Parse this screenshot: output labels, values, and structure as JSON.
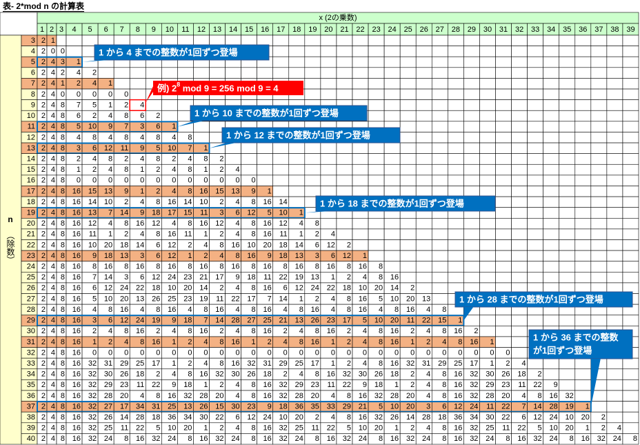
{
  "title": "表- 2*mod n の計算表",
  "x_header": "x (2の乗数)",
  "n_header": "n",
  "n_subheader": "（除数）",
  "columns": [
    1,
    2,
    3,
    4,
    5,
    6,
    7,
    8,
    9,
    10,
    11,
    12,
    13,
    14,
    15,
    16,
    17,
    18,
    19,
    20,
    21,
    22,
    23,
    24,
    25,
    26,
    27,
    28,
    29,
    30,
    31,
    32,
    33,
    34,
    35,
    36,
    37,
    38,
    39
  ],
  "rows": [
    {
      "n": 3,
      "highlight": true,
      "values": [
        2,
        1
      ]
    },
    {
      "n": 4,
      "values": [
        2,
        0,
        0
      ]
    },
    {
      "n": 5,
      "highlight": true,
      "outline": true,
      "values": [
        2,
        4,
        3,
        1
      ]
    },
    {
      "n": 6,
      "values": [
        2,
        4,
        2,
        4,
        2
      ]
    },
    {
      "n": 7,
      "highlight": true,
      "values": [
        2,
        4,
        1,
        2,
        4,
        1
      ]
    },
    {
      "n": 8,
      "values": [
        2,
        4,
        0,
        0,
        0,
        0,
        0
      ]
    },
    {
      "n": 9,
      "values": [
        2,
        4,
        8,
        7,
        5,
        1,
        2,
        4
      ]
    },
    {
      "n": 10,
      "values": [
        2,
        4,
        8,
        6,
        2,
        4,
        8,
        6,
        2
      ]
    },
    {
      "n": 11,
      "highlight": true,
      "outline": true,
      "values": [
        2,
        4,
        8,
        5,
        10,
        9,
        7,
        3,
        6,
        1
      ]
    },
    {
      "n": 12,
      "values": [
        2,
        4,
        8,
        4,
        8,
        4,
        8,
        4,
        8,
        4,
        8
      ]
    },
    {
      "n": 13,
      "highlight": true,
      "outline": true,
      "values": [
        2,
        4,
        8,
        3,
        6,
        12,
        11,
        9,
        5,
        10,
        7,
        1
      ]
    },
    {
      "n": 14,
      "values": [
        2,
        4,
        8,
        2,
        4,
        8,
        2,
        4,
        8,
        2,
        4,
        8,
        2
      ]
    },
    {
      "n": 15,
      "values": [
        2,
        4,
        8,
        1,
        2,
        4,
        8,
        1,
        2,
        4,
        8,
        1,
        2,
        4
      ]
    },
    {
      "n": 16,
      "values": [
        2,
        4,
        8,
        0,
        0,
        0,
        0,
        0,
        0,
        0,
        0,
        0,
        0,
        0,
        0
      ]
    },
    {
      "n": 17,
      "highlight": true,
      "values": [
        2,
        4,
        8,
        16,
        15,
        13,
        9,
        1,
        2,
        4,
        8,
        16,
        15,
        13,
        9,
        1
      ]
    },
    {
      "n": 18,
      "values": [
        2,
        4,
        8,
        16,
        14,
        10,
        2,
        4,
        8,
        16,
        14,
        10,
        2,
        4,
        8,
        16,
        14
      ]
    },
    {
      "n": 19,
      "highlight": true,
      "outline": true,
      "values": [
        2,
        4,
        8,
        16,
        13,
        7,
        14,
        9,
        18,
        17,
        15,
        11,
        3,
        6,
        12,
        5,
        10,
        1
      ]
    },
    {
      "n": 20,
      "values": [
        2,
        4,
        8,
        16,
        12,
        4,
        8,
        16,
        12,
        4,
        8,
        16,
        12,
        4,
        8,
        16,
        12,
        4,
        8
      ]
    },
    {
      "n": 21,
      "values": [
        2,
        4,
        8,
        16,
        11,
        1,
        2,
        4,
        8,
        16,
        11,
        1,
        2,
        4,
        8,
        16,
        11,
        1,
        2,
        4
      ]
    },
    {
      "n": 22,
      "values": [
        2,
        4,
        8,
        16,
        10,
        20,
        18,
        14,
        6,
        12,
        2,
        4,
        8,
        16,
        10,
        20,
        18,
        14,
        6,
        12,
        2
      ]
    },
    {
      "n": 23,
      "highlight": true,
      "values": [
        2,
        4,
        8,
        16,
        9,
        18,
        13,
        3,
        6,
        12,
        1,
        2,
        4,
        8,
        16,
        9,
        18,
        13,
        3,
        6,
        12,
        1
      ]
    },
    {
      "n": 24,
      "values": [
        2,
        4,
        8,
        16,
        8,
        16,
        8,
        16,
        8,
        16,
        8,
        16,
        8,
        16,
        8,
        16,
        8,
        16,
        8,
        16,
        8,
        16,
        8
      ]
    },
    {
      "n": 25,
      "values": [
        2,
        4,
        8,
        16,
        7,
        14,
        3,
        6,
        12,
        24,
        23,
        21,
        17,
        9,
        18,
        11,
        22,
        19,
        13,
        1,
        2,
        4,
        8,
        16
      ]
    },
    {
      "n": 26,
      "values": [
        2,
        4,
        8,
        16,
        6,
        12,
        24,
        22,
        18,
        10,
        20,
        14,
        2,
        4,
        8,
        16,
        6,
        12,
        24,
        22,
        18,
        10,
        20,
        14,
        2
      ]
    },
    {
      "n": 27,
      "values": [
        2,
        4,
        8,
        16,
        5,
        10,
        20,
        13,
        26,
        25,
        23,
        19,
        11,
        22,
        17,
        7,
        14,
        1,
        2,
        4,
        8,
        16,
        5,
        10,
        20,
        13
      ]
    },
    {
      "n": 28,
      "values": [
        2,
        4,
        8,
        16,
        4,
        8,
        16,
        4,
        8,
        16,
        4,
        8,
        16,
        4,
        8,
        16,
        4,
        8,
        16,
        4,
        8,
        16,
        4,
        8,
        16,
        4,
        8
      ]
    },
    {
      "n": 29,
      "highlight": true,
      "outline": true,
      "values": [
        2,
        4,
        8,
        16,
        3,
        6,
        12,
        24,
        19,
        9,
        18,
        7,
        14,
        28,
        27,
        25,
        21,
        13,
        26,
        23,
        17,
        5,
        10,
        20,
        11,
        22,
        15,
        1
      ]
    },
    {
      "n": 30,
      "values": [
        2,
        4,
        8,
        16,
        2,
        4,
        8,
        16,
        2,
        4,
        8,
        16,
        2,
        4,
        8,
        16,
        2,
        4,
        8,
        16,
        2,
        4,
        8,
        16,
        2,
        4,
        8,
        16,
        2
      ]
    },
    {
      "n": 31,
      "highlight": true,
      "values": [
        2,
        4,
        8,
        16,
        1,
        2,
        4,
        8,
        16,
        1,
        2,
        4,
        8,
        16,
        1,
        2,
        4,
        8,
        16,
        1,
        2,
        4,
        8,
        16,
        1,
        2,
        4,
        8,
        16,
        1
      ]
    },
    {
      "n": 32,
      "values": [
        2,
        4,
        8,
        16,
        0,
        0,
        0,
        0,
        0,
        0,
        0,
        0,
        0,
        0,
        0,
        0,
        0,
        0,
        0,
        0,
        0,
        0,
        0,
        0,
        0,
        0,
        0,
        0,
        0,
        0,
        0
      ]
    },
    {
      "n": 33,
      "values": [
        2,
        4,
        8,
        16,
        32,
        31,
        29,
        25,
        17,
        1,
        2,
        4,
        8,
        16,
        32,
        31,
        29,
        25,
        17,
        1,
        2,
        4,
        8,
        16,
        32,
        31,
        29,
        25,
        17,
        1,
        2,
        4
      ]
    },
    {
      "n": 34,
      "values": [
        2,
        4,
        8,
        16,
        32,
        30,
        26,
        18,
        2,
        4,
        8,
        16,
        32,
        30,
        26,
        18,
        2,
        4,
        8,
        16,
        32,
        30,
        26,
        18,
        2,
        4,
        8,
        16,
        32,
        30,
        26,
        18,
        2
      ]
    },
    {
      "n": 35,
      "values": [
        2,
        4,
        8,
        16,
        32,
        29,
        23,
        11,
        22,
        9,
        18,
        1,
        2,
        4,
        8,
        16,
        32,
        29,
        23,
        11,
        22,
        9,
        18,
        1,
        2,
        4,
        8,
        16,
        32,
        29,
        23,
        11,
        22,
        9
      ]
    },
    {
      "n": 36,
      "values": [
        2,
        4,
        8,
        16,
        32,
        28,
        20,
        4,
        8,
        16,
        32,
        28,
        20,
        4,
        8,
        16,
        32,
        28,
        20,
        4,
        8,
        16,
        32,
        28,
        20,
        4,
        8,
        16,
        32,
        28,
        20,
        4,
        8,
        16,
        32
      ]
    },
    {
      "n": 37,
      "highlight": true,
      "outline": true,
      "values": [
        2,
        4,
        8,
        16,
        32,
        27,
        17,
        34,
        31,
        25,
        13,
        26,
        15,
        30,
        23,
        9,
        18,
        36,
        35,
        33,
        29,
        21,
        5,
        10,
        20,
        3,
        6,
        12,
        24,
        11,
        22,
        7,
        14,
        28,
        19,
        1
      ]
    },
    {
      "n": 38,
      "values": [
        2,
        4,
        8,
        16,
        32,
        26,
        14,
        28,
        18,
        36,
        34,
        30,
        22,
        6,
        12,
        24,
        10,
        20,
        2,
        4,
        8,
        16,
        32,
        26,
        14,
        28,
        18,
        36,
        34,
        30,
        22,
        6,
        12,
        24,
        10,
        20,
        2
      ]
    },
    {
      "n": 39,
      "values": [
        2,
        4,
        8,
        16,
        32,
        25,
        11,
        22,
        5,
        10,
        20,
        1,
        2,
        4,
        8,
        16,
        32,
        25,
        11,
        22,
        5,
        10,
        20,
        1,
        2,
        4,
        8,
        16,
        32,
        25,
        11,
        22,
        5,
        10,
        20,
        1,
        2,
        4
      ]
    },
    {
      "n": 40,
      "values": [
        2,
        4,
        8,
        16,
        32,
        24,
        8,
        16,
        32,
        24,
        8,
        16,
        32,
        24,
        8,
        16,
        32,
        24,
        8,
        16,
        32,
        24,
        8,
        16,
        32,
        24,
        8,
        16,
        32,
        24,
        8,
        16,
        32,
        24,
        8,
        16,
        32,
        24,
        8
      ]
    }
  ],
  "example_callout": {
    "before": "例) 2",
    "sup": "8",
    "after": " mod 9 = 256 mod 9 = 4"
  },
  "callouts": [
    {
      "lines": [
        "1 から 4 までの整数が1回ずつ登場"
      ]
    },
    {
      "lines": [
        "1 から 10 までの整数が1回ずつ登場"
      ]
    },
    {
      "lines": [
        "1 から 12 までの整数が1回ずつ登場"
      ]
    },
    {
      "lines": [
        "1 から 18 までの整数が1回ずつ登場"
      ]
    },
    {
      "lines": [
        "1 から 28 までの整数が1回ずつ登場"
      ]
    },
    {
      "lines": [
        "1 から 36 までの整数",
        "が1回ずつ登場"
      ]
    }
  ]
}
